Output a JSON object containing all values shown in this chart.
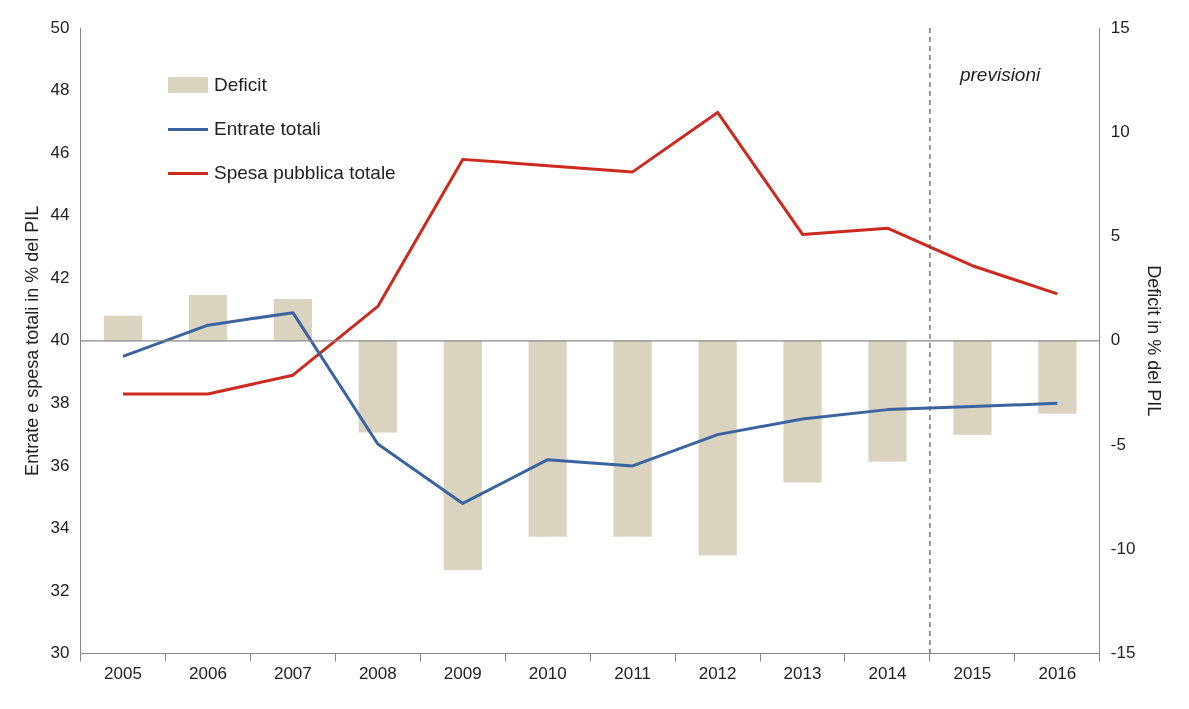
{
  "chart_data": {
    "type": "line",
    "ylabel": "Entrate e spesa totali in % del PIL",
    "y2label": "Deficit in % del PIL",
    "x": [
      2005,
      2006,
      2007,
      2008,
      2009,
      2010,
      2011,
      2012,
      2013,
      2014,
      2015,
      2016
    ],
    "xlim": [
      2004.5,
      2016.5
    ],
    "xticks": [
      2005,
      2006,
      2007,
      2008,
      2009,
      2010,
      2011,
      2012,
      2013,
      2014,
      2015,
      2016
    ],
    "ylim": [
      30,
      50
    ],
    "yticks": [
      30,
      32,
      34,
      36,
      38,
      40,
      42,
      44,
      46,
      48,
      50
    ],
    "y2lim": [
      -15,
      15
    ],
    "y2ticks": [
      -15,
      -10,
      -5,
      0,
      5,
      10,
      15
    ],
    "series": [
      {
        "name": "Deficit",
        "type": "bar",
        "axis": "y2",
        "color": "#d9d3c0",
        "values": [
          1.2,
          2.2,
          2.0,
          -4.4,
          -11.0,
          -9.4,
          -9.4,
          -10.3,
          -6.8,
          -5.8,
          -4.5,
          -3.5
        ]
      },
      {
        "name": "Entrate totali",
        "color": "#3a63a0",
        "values": [
          39.5,
          40.5,
          40.9,
          36.7,
          34.8,
          36.2,
          36.0,
          37.0,
          37.5,
          37.8,
          37.9,
          38.0
        ]
      },
      {
        "name": "Spesa pubblica totale",
        "color": "#cc2a1e",
        "values": [
          38.3,
          38.3,
          38.9,
          41.1,
          45.8,
          45.6,
          45.4,
          47.3,
          43.4,
          43.6,
          42.4,
          41.5
        ]
      }
    ],
    "ref_lines": [
      {
        "axis": "x",
        "value": 2014.5,
        "label": "previsioni",
        "color": "#555555",
        "line_style": "dashed"
      },
      {
        "axis": "y2",
        "value": 0,
        "color": "#888888",
        "line_style": "solid"
      }
    ],
    "legend": "top left",
    "grid": false,
    "marker": "none"
  }
}
